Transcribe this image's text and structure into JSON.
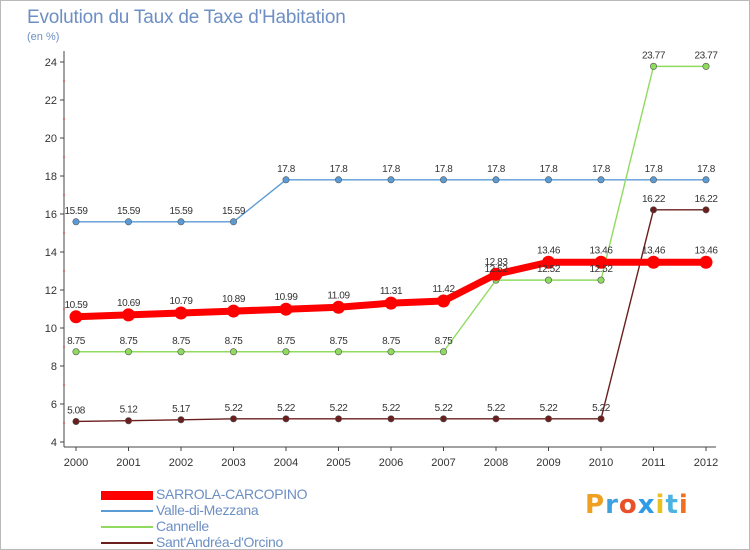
{
  "title": "Evolution du Taux de Taxe d'Habitation",
  "unit_label": "(en %)",
  "logo_text": "Proxiti",
  "chart_data": {
    "type": "line",
    "title": "Evolution du Taux de Taxe d'Habitation",
    "ylabel": "(en %)",
    "x": [
      "2000",
      "2001",
      "2002",
      "2003",
      "2004",
      "2005",
      "2006",
      "2007",
      "2008",
      "2009",
      "2010",
      "2011",
      "2012"
    ],
    "ylim": [
      4,
      24
    ],
    "yticks": [
      4,
      6,
      8,
      10,
      12,
      14,
      16,
      18,
      20,
      22,
      24
    ],
    "grid": false,
    "legend_placement": "bottom-left",
    "series": [
      {
        "name": "SARROLA-CARCOPINO",
        "color": "#ff0000",
        "values": [
          10.59,
          10.69,
          10.79,
          10.89,
          10.99,
          11.09,
          11.31,
          11.42,
          12.83,
          13.46,
          13.46,
          13.46,
          13.46
        ],
        "labels": [
          "10.59",
          "10.69",
          "10.79",
          "10.89",
          "10.99",
          "11.09",
          "11.31",
          "11.42",
          "12.83",
          "13.46",
          "13.46",
          "13.46",
          "13.46"
        ]
      },
      {
        "name": "Valle-di-Mezzana",
        "color": "#5b9bd5",
        "values": [
          15.59,
          15.59,
          15.59,
          15.59,
          17.8,
          17.8,
          17.8,
          17.8,
          17.8,
          17.8,
          17.8,
          17.8,
          17.8
        ],
        "labels": [
          "15.59",
          "15.59",
          "15.59",
          "15.59",
          "17.8",
          "17.8",
          "17.8",
          "17.8",
          "17.8",
          "17.8",
          "17.8",
          "17.8",
          "17.8"
        ]
      },
      {
        "name": "Cannelle",
        "color": "#8fdb5f",
        "values": [
          8.75,
          8.75,
          8.75,
          8.75,
          8.75,
          8.75,
          8.75,
          8.75,
          12.52,
          12.52,
          12.52,
          23.77,
          23.77
        ],
        "labels": [
          "8.75",
          "8.75",
          "8.75",
          "8.75",
          "8.75",
          "8.75",
          "8.75",
          "8.75",
          "12.52",
          "12.52",
          "12.52",
          "23.77",
          "23.77"
        ]
      },
      {
        "name": "Sant'Andréa-d'Orcino",
        "color": "#6b1e1e",
        "values": [
          5.08,
          5.12,
          5.17,
          5.22,
          5.22,
          5.22,
          5.22,
          5.22,
          5.22,
          5.22,
          5.22,
          16.22,
          16.22
        ],
        "labels": [
          "5.08",
          "5.12",
          "5.17",
          "5.22",
          "5.22",
          "5.22",
          "5.22",
          "5.22",
          "5.22",
          "5.22",
          "5.22",
          "16.22",
          "16.22"
        ]
      }
    ]
  }
}
